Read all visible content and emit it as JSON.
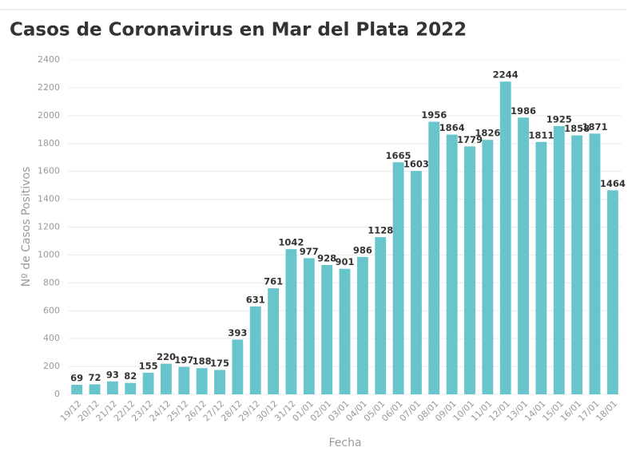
{
  "chart_data": {
    "type": "bar",
    "title": "Casos de Coronavirus en Mar del Plata 2022",
    "x_label": "Fecha",
    "y_label": "Nº de Casos Positivos",
    "categories": [
      "19/12",
      "20/12",
      "21/12",
      "22/12",
      "23/12",
      "24/12",
      "25/12",
      "26/12",
      "27/12",
      "28/12",
      "29/12",
      "30/12",
      "31/12",
      "01/01",
      "02/01",
      "03/01",
      "04/01",
      "05/01",
      "06/01",
      "07/01",
      "08/01",
      "09/01",
      "10/01",
      "11/01",
      "12/01",
      "13/01",
      "14/01",
      "15/01",
      "16/01",
      "17/01",
      "18/01"
    ],
    "values": [
      69,
      72,
      93,
      82,
      155,
      220,
      197,
      188,
      175,
      393,
      631,
      761,
      1042,
      977,
      928,
      901,
      986,
      1128,
      1665,
      1603,
      1956,
      1864,
      1779,
      1826,
      2244,
      1986,
      1811,
      1925,
      1858,
      1871,
      1464
    ],
    "color": "#68c5cc",
    "ylim": [
      0,
      2400
    ],
    "yticks": [
      0,
      200,
      400,
      600,
      800,
      1000,
      1200,
      1400,
      1600,
      1800,
      2000,
      2200,
      2400
    ],
    "grid": true
  }
}
